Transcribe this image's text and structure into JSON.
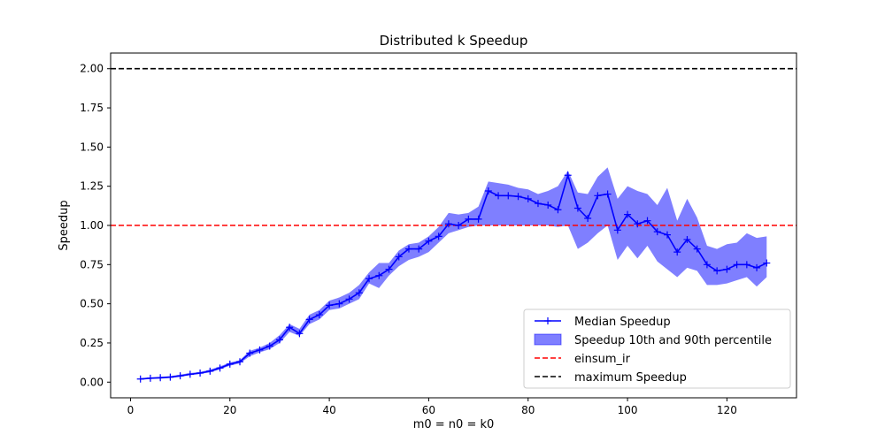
{
  "chart_data": {
    "type": "line",
    "title": "Distributed k Speedup",
    "xlabel": "m0 = n0 = k0",
    "ylabel": "Speedup",
    "xlim": [
      -4,
      134
    ],
    "ylim": [
      -0.1,
      2.1
    ],
    "xticks": [
      0,
      20,
      40,
      60,
      80,
      100,
      120
    ],
    "yticks": [
      0.0,
      0.25,
      0.5,
      0.75,
      1.0,
      1.25,
      1.5,
      1.75,
      2.0
    ],
    "ytick_labels": [
      "0.00",
      "0.25",
      "0.50",
      "0.75",
      "1.00",
      "1.25",
      "1.50",
      "1.75",
      "2.00"
    ],
    "grid": false,
    "legend_position": "lower-right",
    "colors": {
      "median": "#0000ff",
      "band": "#0000ff",
      "einsum": "#ff0000",
      "maximum": "#000000"
    },
    "x": [
      2,
      4,
      6,
      8,
      10,
      12,
      14,
      16,
      18,
      20,
      22,
      24,
      26,
      28,
      30,
      32,
      34,
      36,
      38,
      40,
      42,
      44,
      46,
      48,
      50,
      52,
      54,
      56,
      58,
      60,
      62,
      64,
      66,
      68,
      70,
      72,
      74,
      76,
      78,
      80,
      82,
      84,
      86,
      88,
      90,
      92,
      94,
      96,
      98,
      100,
      102,
      104,
      106,
      108,
      110,
      112,
      114,
      116,
      118,
      120,
      122,
      124,
      126,
      128
    ],
    "series": [
      {
        "name": "Median Speedup",
        "kind": "line-marker",
        "values": [
          0.02,
          0.025,
          0.028,
          0.032,
          0.04,
          0.05,
          0.058,
          0.07,
          0.09,
          0.115,
          0.13,
          0.185,
          0.205,
          0.23,
          0.27,
          0.35,
          0.31,
          0.4,
          0.43,
          0.49,
          0.5,
          0.53,
          0.57,
          0.66,
          0.68,
          0.72,
          0.8,
          0.85,
          0.85,
          0.9,
          0.93,
          1.01,
          1.0,
          1.04,
          1.04,
          1.22,
          1.19,
          1.19,
          1.185,
          1.17,
          1.14,
          1.13,
          1.1,
          1.32,
          1.11,
          1.045,
          1.19,
          1.2,
          0.97,
          1.07,
          1.01,
          1.03,
          0.96,
          0.94,
          0.83,
          0.91,
          0.85,
          0.75,
          0.71,
          0.72,
          0.75,
          0.75,
          0.73,
          0.76
        ]
      },
      {
        "name": "Speedup 10th and 90th percentile",
        "kind": "band",
        "lower": [
          0.015,
          0.02,
          0.022,
          0.026,
          0.034,
          0.045,
          0.052,
          0.062,
          0.082,
          0.105,
          0.12,
          0.165,
          0.19,
          0.21,
          0.25,
          0.32,
          0.295,
          0.37,
          0.4,
          0.46,
          0.47,
          0.5,
          0.53,
          0.63,
          0.6,
          0.68,
          0.74,
          0.78,
          0.8,
          0.83,
          0.89,
          0.95,
          0.97,
          0.99,
          1.0,
          1.0,
          1.0,
          1.0,
          1.0,
          1.0,
          1.0,
          1.0,
          0.99,
          1.0,
          0.85,
          0.89,
          0.95,
          1.0,
          0.78,
          0.87,
          0.79,
          0.87,
          0.77,
          0.72,
          0.67,
          0.73,
          0.71,
          0.62,
          0.62,
          0.63,
          0.65,
          0.67,
          0.61,
          0.67
        ],
        "upper": [
          0.025,
          0.03,
          0.034,
          0.038,
          0.048,
          0.058,
          0.065,
          0.08,
          0.1,
          0.125,
          0.14,
          0.2,
          0.22,
          0.25,
          0.3,
          0.37,
          0.34,
          0.43,
          0.46,
          0.52,
          0.54,
          0.57,
          0.62,
          0.7,
          0.76,
          0.76,
          0.84,
          0.88,
          0.89,
          0.93,
          0.99,
          1.08,
          1.07,
          1.08,
          1.12,
          1.28,
          1.27,
          1.26,
          1.24,
          1.23,
          1.2,
          1.22,
          1.25,
          1.35,
          1.21,
          1.2,
          1.31,
          1.37,
          1.17,
          1.25,
          1.22,
          1.2,
          1.13,
          1.24,
          1.03,
          1.17,
          1.05,
          0.87,
          0.85,
          0.88,
          0.89,
          0.95,
          0.92,
          0.93
        ]
      },
      {
        "name": "einsum_ir",
        "kind": "hline",
        "y": 1.0
      },
      {
        "name": "maximum Speedup",
        "kind": "hline",
        "y": 2.0
      }
    ]
  }
}
